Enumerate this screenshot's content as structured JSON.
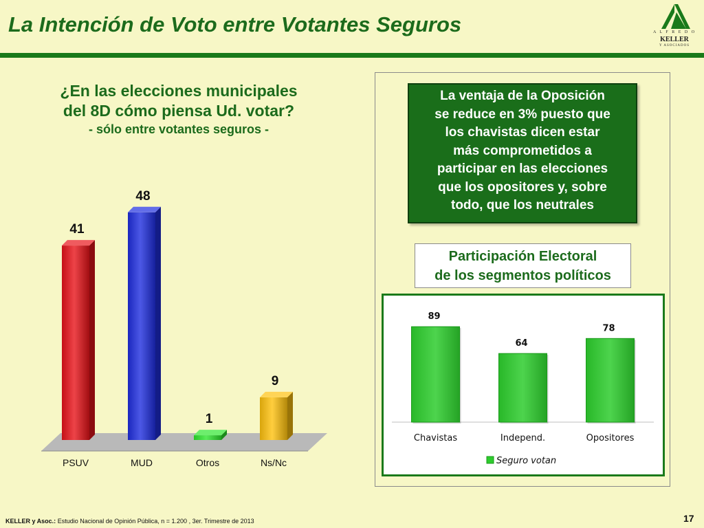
{
  "header": {
    "title": "La Intención de Voto entre Votantes Seguros",
    "logo": {
      "line1": "A L F R E D O",
      "line2": "KELLER",
      "line3": "Y  ASOCIADOS"
    }
  },
  "question": {
    "line1": "¿En las elecciones municipales",
    "line2": "del 8D cómo piensa Ud. votar?",
    "line3": "- sólo entre votantes seguros -"
  },
  "note": {
    "lines": [
      "La ventaja de la Oposición",
      "se reduce en 3% puesto que",
      "los chavistas dicen estar",
      "más comprometidos a",
      "participar en las elecciones",
      "que los opositores y, sobre",
      "todo, que los neutrales"
    ]
  },
  "participation": {
    "title_line1": "Participación Electoral",
    "title_line2": "de los segmentos políticos"
  },
  "chart_data": [
    {
      "type": "bar",
      "categories": [
        "PSUV",
        "MUD",
        "Otros",
        "Ns/Nc"
      ],
      "values": [
        41,
        48,
        1,
        9
      ],
      "colors": [
        "#e8141a",
        "#1f2ee0",
        "#2ee62e",
        "#ffc20e"
      ],
      "ylim": [
        0,
        50
      ],
      "grid": false,
      "title": "",
      "xlabel": "",
      "ylabel": ""
    },
    {
      "type": "bar",
      "categories": [
        "Chavistas",
        "Independ.",
        "Opositores"
      ],
      "series": [
        {
          "name": "Seguro votan",
          "values": [
            89,
            64,
            78
          ]
        }
      ],
      "color": "#2ecc2e",
      "ylim": [
        0,
        100
      ],
      "grid": false,
      "legend": "bottom"
    }
  ],
  "footer": {
    "bold": "KELLER y Asoc.:",
    "text": " Estudio Nacional de Opinión Pública, n = 1.200 , 3er. Trimestre de 2013",
    "page": "17"
  }
}
